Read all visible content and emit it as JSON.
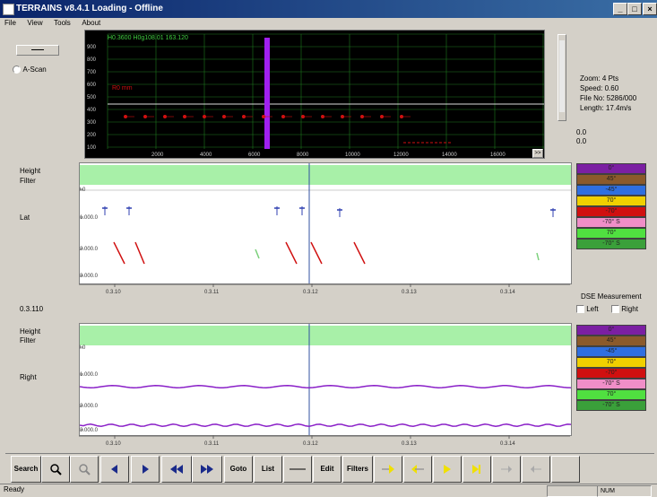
{
  "window": {
    "title": "TERRAINS v8.4.1 Loading - Offline",
    "minimize": "_",
    "maximize": "□",
    "close": "×"
  },
  "menu": [
    "File",
    "View",
    "Tools",
    "About"
  ],
  "left_controls": {
    "button_label": "",
    "radio_label": "A-Scan"
  },
  "readout": {
    "header": "H0.3600  H0g108.01  163.120",
    "zoom": "Zoom: 4 Pts",
    "speed": "Speed: 0.60",
    "file": "File No: 5286/000",
    "length": "Length: 17.4m/s",
    "v1": "0.0",
    "v2": "0.0",
    "scroll_right": ">>"
  },
  "scope": {
    "y_ticks": [
      "900",
      "800",
      "700",
      "600",
      "500",
      "400",
      "300",
      "200",
      "100"
    ],
    "x_ticks": [
      "",
      "2000",
      "4000",
      "6000",
      "8000",
      "10000",
      "12000",
      "14000",
      "16000"
    ],
    "line_label": "R0  mm",
    "grid": true
  },
  "left_panel": {
    "height_label": "Height",
    "filter_label": "Filter",
    "lat_label": "Lat",
    "y_ticks": [
      "0.0",
      "-1.000.0",
      "-2.000.0",
      "-3.000.0"
    ],
    "x_ticks": [
      "0.3.10",
      "0.3.11",
      "0.3.12",
      "0.3.13",
      "0.3.14"
    ]
  },
  "right_panel": {
    "height_label": "Height",
    "filter_label": "Filter",
    "right_label": "Right",
    "y_ticks": [
      "0.0",
      "-1.000.0",
      "-2.000.0",
      "-3.000.0"
    ],
    "x_ticks": [
      "0.3.10",
      "0.3.11",
      "0.3.12",
      "0.3.13",
      "0.3.14"
    ],
    "position": "0.3.110"
  },
  "legend": {
    "left": [
      {
        "label": "0°",
        "color": "#7b1fa2"
      },
      {
        "label": "45°",
        "color": "#8b5a2b"
      },
      {
        "label": "-45°",
        "color": "#2f6fe0"
      },
      {
        "label": "70°",
        "color": "#f0d000"
      },
      {
        "label": "-70°",
        "color": "#d01010"
      },
      {
        "label": "-70° S",
        "color": "#f08ec8"
      },
      {
        "label": "70°",
        "color": "#50e040"
      },
      {
        "label": "-70° S",
        "color": "#3aa03a"
      }
    ],
    "right": [
      {
        "label": "0°",
        "color": "#7b1fa2"
      },
      {
        "label": "45°",
        "color": "#8b5a2b"
      },
      {
        "label": "-45°",
        "color": "#2f6fe0"
      },
      {
        "label": "70°",
        "color": "#f0d000"
      },
      {
        "label": "-70°",
        "color": "#d01010"
      },
      {
        "label": "-70° S",
        "color": "#f08ec8"
      },
      {
        "label": "70°",
        "color": "#50e040"
      },
      {
        "label": "-70° S",
        "color": "#3aa03a"
      }
    ],
    "measurement_title": "DSE Measurement",
    "check_left": "Left",
    "check_right": "Right"
  },
  "toolbar": {
    "search": "Search",
    "zoom_in_icon": "magnifier-icon",
    "zoom_out_icon": "magnifier-disabled-icon",
    "prev_icon": "triangle-left-icon",
    "next_icon": "triangle-right-icon",
    "rewind_icon": "double-left-icon",
    "forward_icon": "double-right-icon",
    "goto": "Goto",
    "list": "List",
    "line_icon": "line-icon",
    "edit": "Edit",
    "filters": "Filters"
  },
  "status": {
    "text": "Ready",
    "cell1": "",
    "cell2": "NUM"
  },
  "colors": {
    "grid_green": "#1e7a1e",
    "scope_purple": "#a020f0",
    "band_green": "#a8f0a8",
    "baseline_purple": "#8a20c8"
  }
}
